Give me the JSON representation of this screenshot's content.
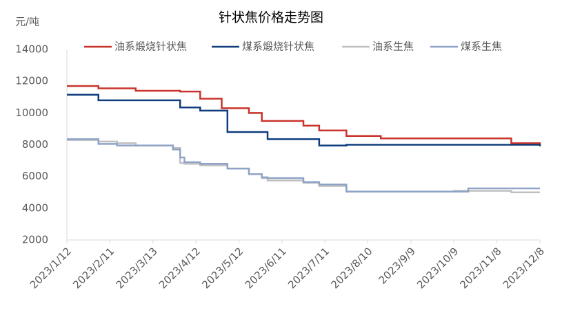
{
  "chart_data": {
    "type": "line",
    "step": "post",
    "title": "针状焦价格走势图",
    "y_label": "元/吨",
    "x": [
      "2023/1/12",
      "2023/2/3",
      "2023/2/16",
      "2023/3/1",
      "2023/3/27",
      "2023/4/1",
      "2023/4/4",
      "2023/4/15",
      "2023/4/30",
      "2023/5/4",
      "2023/5/19",
      "2023/5/28",
      "2023/6/1",
      "2023/6/26",
      "2023/7/7",
      "2023/7/26",
      "2023/8/19",
      "2023/10/9",
      "2023/10/19",
      "2023/11/18",
      "2023/12/7",
      "2023/12/8"
    ],
    "series": [
      {
        "name": "油系煅烧针状焦",
        "color": "#c9332b",
        "values": [
          11700,
          11550,
          11550,
          11400,
          11400,
          11350,
          11350,
          10900,
          10300,
          10300,
          10000,
          9500,
          9500,
          9200,
          8900,
          8550,
          8400,
          8400,
          8400,
          8100,
          8100,
          7950
        ]
      },
      {
        "name": "煤系煅烧针状焦",
        "color": "#0e3c7e",
        "values": [
          11150,
          10800,
          10800,
          10800,
          10800,
          10350,
          10350,
          10150,
          10150,
          8800,
          8800,
          8800,
          8350,
          8350,
          7950,
          8000,
          8000,
          8000,
          8000,
          8000,
          8000,
          7900
        ]
      },
      {
        "name": "油系生焦",
        "color": "#bfbfbf",
        "values": [
          8300,
          8200,
          8100,
          7950,
          7800,
          6850,
          6800,
          6700,
          6700,
          6500,
          6150,
          5900,
          5750,
          5600,
          5400,
          5050,
          5050,
          5100,
          5100,
          5000,
          5000,
          5000
        ]
      },
      {
        "name": "煤系生焦",
        "color": "#8fa3c8",
        "values": [
          8350,
          8050,
          7950,
          7950,
          7700,
          7200,
          6900,
          6800,
          6800,
          6500,
          6150,
          5950,
          5900,
          5650,
          5500,
          5050,
          5050,
          5050,
          5250,
          5250,
          5250,
          5250
        ]
      }
    ],
    "xlim": [
      "2023/1/12",
      "2023/12/8"
    ],
    "xticks": [
      "2023/1/12",
      "2023/2/11",
      "2023/3/13",
      "2023/4/12",
      "2023/5/12",
      "2023/6/11",
      "2023/7/11",
      "2023/8/10",
      "2023/9/9",
      "2023/10/9",
      "2023/11/8",
      "2023/12/8"
    ],
    "ylim": [
      2000,
      14000
    ],
    "yticks": [
      2000,
      4000,
      6000,
      8000,
      10000,
      12000,
      14000
    ],
    "grid": false,
    "legend": "top"
  }
}
